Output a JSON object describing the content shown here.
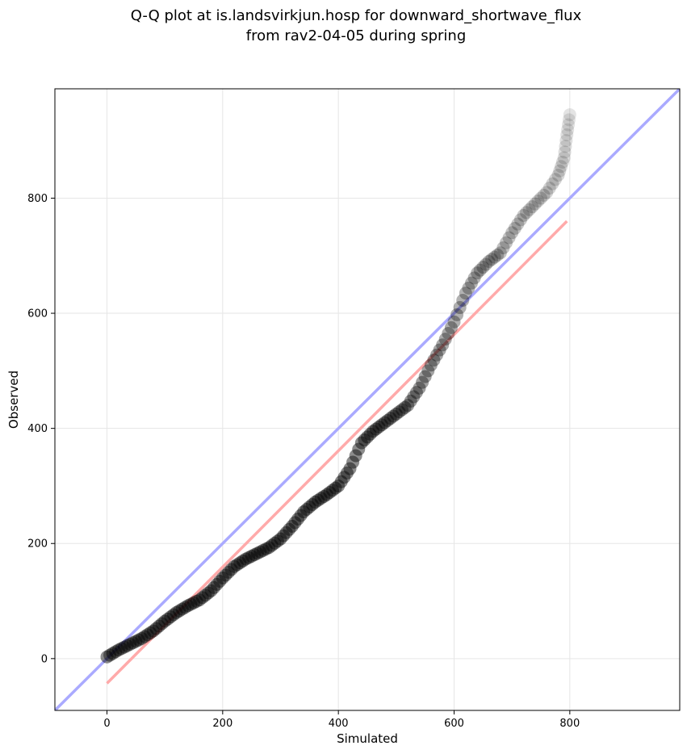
{
  "chart_data": {
    "type": "scatter",
    "title_lines": [
      "Q-Q plot at is.landsvirkjun.hosp for downward_shortwave_flux",
      "from rav2-04-05 during spring"
    ],
    "xlabel": "Simulated",
    "ylabel": "Observed",
    "xlim": [
      -90,
      990
    ],
    "ylim": [
      -90,
      990
    ],
    "xticks": [
      0,
      200,
      400,
      600,
      800
    ],
    "yticks": [
      0,
      200,
      400,
      600,
      800
    ],
    "xtick_labels": [
      "0",
      "200",
      "400",
      "600",
      "800"
    ],
    "ytick_labels": [
      "0",
      "200",
      "400",
      "600",
      "800"
    ],
    "grid": true,
    "reference_line": {
      "color": "#aaaaff",
      "slope": 1,
      "intercept": 0
    },
    "fit_line": {
      "color": "#ffaaaa",
      "x": [
        0,
        795
      ],
      "y": [
        -43,
        760
      ]
    },
    "quantiles_curve": {
      "x": [
        0,
        20,
        40,
        60,
        80,
        100,
        120,
        140,
        160,
        180,
        200,
        220,
        240,
        260,
        280,
        300,
        320,
        340,
        360,
        380,
        400,
        420,
        440,
        460,
        480,
        500,
        520,
        540,
        560,
        580,
        600,
        620,
        640,
        660,
        680,
        700,
        720,
        740,
        760,
        780,
        790,
        795,
        800
      ],
      "y": [
        3,
        15,
        25,
        35,
        48,
        65,
        80,
        92,
        102,
        118,
        140,
        160,
        173,
        183,
        193,
        208,
        230,
        255,
        272,
        285,
        300,
        330,
        375,
        395,
        410,
        425,
        440,
        470,
        510,
        545,
        585,
        635,
        670,
        690,
        705,
        740,
        770,
        790,
        810,
        840,
        870,
        910,
        945
      ]
    },
    "points_per_segment": 4,
    "marker_color": "#000000"
  }
}
